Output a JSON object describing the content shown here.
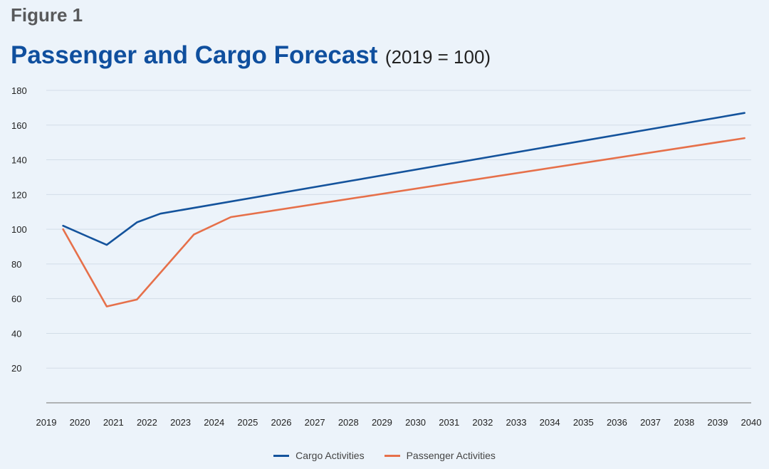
{
  "figure_label": "Figure 1",
  "colors": {
    "cargo": "#14539c",
    "passenger": "#e6704a",
    "grid": "#d3dde8",
    "axis": "#8a8a8a"
  },
  "chart_data": {
    "type": "line",
    "title": "Passenger and Cargo Forecast",
    "subtitle": "(2019 = 100)",
    "xlabel": "",
    "ylabel": "",
    "x_ticks": [
      "2019",
      "2020",
      "2021",
      "2022",
      "2023",
      "2024",
      "2025",
      "2026",
      "2027",
      "2028",
      "2029",
      "2030",
      "2031",
      "2032",
      "2033",
      "2034",
      "2035",
      "2036",
      "2037",
      "2038",
      "2039",
      "2040"
    ],
    "y_ticks": [
      20,
      40,
      60,
      80,
      100,
      120,
      140,
      160,
      180
    ],
    "ylim": [
      0,
      180
    ],
    "grid": true,
    "legend_position": "bottom-center",
    "series": [
      {
        "name": "Cargo Activities",
        "points": [
          {
            "x": 2019.5,
            "y": 102
          },
          {
            "x": 2020.8,
            "y": 91
          },
          {
            "x": 2021.7,
            "y": 104
          },
          {
            "x": 2022.4,
            "y": 109
          },
          {
            "x": 2039.8,
            "y": 167
          }
        ]
      },
      {
        "name": "Passenger Activities",
        "points": [
          {
            "x": 2019.5,
            "y": 100
          },
          {
            "x": 2020.8,
            "y": 55.5
          },
          {
            "x": 2021.7,
            "y": 59.5
          },
          {
            "x": 2023.4,
            "y": 97
          },
          {
            "x": 2024.5,
            "y": 107
          },
          {
            "x": 2039.8,
            "y": 152.5
          }
        ]
      }
    ]
  }
}
